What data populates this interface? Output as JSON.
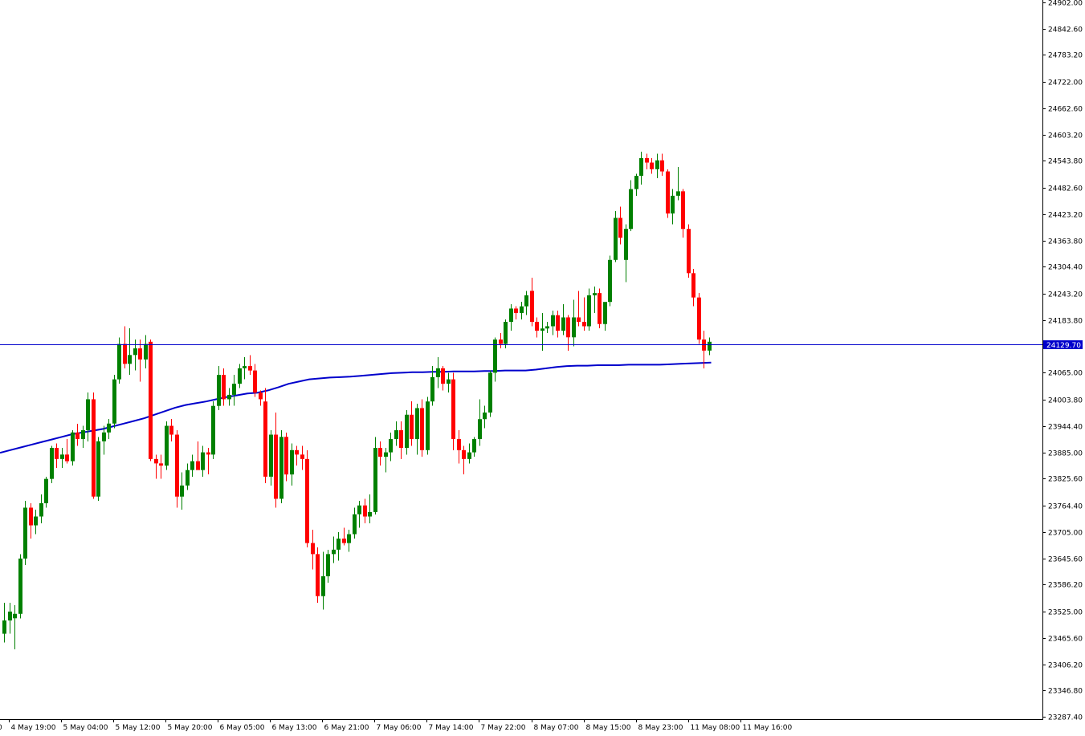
{
  "chart_data": {
    "type": "candlestick",
    "title": "",
    "timeframe": "H1",
    "colors": {
      "background": "#ffffff",
      "axis": "#000000",
      "up_candle": "#008000",
      "down_candle": "#ff0000",
      "price_line": "#0000cc",
      "moving_average": "#0000cc",
      "price_badge_bg": "#0000cc",
      "price_badge_text": "#ffffff"
    },
    "y_axis": {
      "min": 23287.4,
      "max": 24902.0,
      "ticks": [
        "24902.00",
        "24842.60",
        "24783.20",
        "24722.00",
        "24662.60",
        "24603.20",
        "24543.80",
        "24482.60",
        "24423.20",
        "24363.80",
        "24304.40",
        "24243.20",
        "24183.80",
        "24129.70",
        "24065.00",
        "24003.80",
        "23944.40",
        "23885.00",
        "23825.60",
        "23764.40",
        "23705.00",
        "23645.60",
        "23586.20",
        "23525.00",
        "23465.60",
        "23406.20",
        "23346.80",
        "23287.40"
      ]
    },
    "x_axis": {
      "ticks": [
        "4 May 19:00",
        "5 May 04:00",
        "5 May 12:00",
        "5 May 20:00",
        "6 May 05:00",
        "6 May 13:00",
        "6 May 21:00",
        "7 May 06:00",
        "7 May 14:00",
        "7 May 22:00",
        "8 May 07:00",
        "8 May 15:00",
        "8 May 23:00",
        "11 May 08:00",
        "11 May 16:00"
      ],
      "first_tick_fragment": "0"
    },
    "current_price": 24129.7,
    "current_price_label": "24129.70",
    "candles": [
      {
        "o": 23475,
        "h": 23545,
        "l": 23455,
        "c": 23505
      },
      {
        "o": 23505,
        "h": 23545,
        "l": 23475,
        "c": 23525
      },
      {
        "o": 23510,
        "h": 23540,
        "l": 23440,
        "c": 23520
      },
      {
        "o": 23520,
        "h": 23655,
        "l": 23510,
        "c": 23645
      },
      {
        "o": 23645,
        "h": 23775,
        "l": 23630,
        "c": 23760
      },
      {
        "o": 23760,
        "h": 23770,
        "l": 23690,
        "c": 23720
      },
      {
        "o": 23720,
        "h": 23755,
        "l": 23700,
        "c": 23740
      },
      {
        "o": 23740,
        "h": 23790,
        "l": 23725,
        "c": 23770
      },
      {
        "o": 23770,
        "h": 23830,
        "l": 23760,
        "c": 23825
      },
      {
        "o": 23825,
        "h": 23900,
        "l": 23815,
        "c": 23895
      },
      {
        "o": 23895,
        "h": 23905,
        "l": 23850,
        "c": 23870
      },
      {
        "o": 23870,
        "h": 23895,
        "l": 23850,
        "c": 23880
      },
      {
        "o": 23880,
        "h": 23915,
        "l": 23860,
        "c": 23865
      },
      {
        "o": 23865,
        "h": 23935,
        "l": 23855,
        "c": 23930
      },
      {
        "o": 23930,
        "h": 23950,
        "l": 23900,
        "c": 23915
      },
      {
        "o": 23915,
        "h": 23945,
        "l": 23895,
        "c": 23935
      },
      {
        "o": 23935,
        "h": 24020,
        "l": 23910,
        "c": 24005
      },
      {
        "o": 24005,
        "h": 24020,
        "l": 23780,
        "c": 23785
      },
      {
        "o": 23785,
        "h": 23920,
        "l": 23775,
        "c": 23910
      },
      {
        "o": 23910,
        "h": 23945,
        "l": 23880,
        "c": 23930
      },
      {
        "o": 23930,
        "h": 23960,
        "l": 23915,
        "c": 23950
      },
      {
        "o": 23950,
        "h": 24060,
        "l": 23940,
        "c": 24050
      },
      {
        "o": 24050,
        "h": 24145,
        "l": 24040,
        "c": 24130
      },
      {
        "o": 24130,
        "h": 24170,
        "l": 24075,
        "c": 24085
      },
      {
        "o": 24085,
        "h": 24165,
        "l": 24060,
        "c": 24105
      },
      {
        "o": 24105,
        "h": 24140,
        "l": 24070,
        "c": 24120
      },
      {
        "o": 24120,
        "h": 24140,
        "l": 24045,
        "c": 24095
      },
      {
        "o": 24095,
        "h": 24150,
        "l": 24075,
        "c": 24130
      },
      {
        "o": 24135,
        "h": 24140,
        "l": 23865,
        "c": 23870
      },
      {
        "o": 23870,
        "h": 23880,
        "l": 23825,
        "c": 23860
      },
      {
        "o": 23860,
        "h": 23880,
        "l": 23825,
        "c": 23855
      },
      {
        "o": 23855,
        "h": 23955,
        "l": 23845,
        "c": 23945
      },
      {
        "o": 23945,
        "h": 23960,
        "l": 23910,
        "c": 23925
      },
      {
        "o": 23925,
        "h": 23935,
        "l": 23760,
        "c": 23785
      },
      {
        "o": 23785,
        "h": 23840,
        "l": 23755,
        "c": 23810
      },
      {
        "o": 23810,
        "h": 23860,
        "l": 23800,
        "c": 23845
      },
      {
        "o": 23845,
        "h": 23880,
        "l": 23830,
        "c": 23865
      },
      {
        "o": 23865,
        "h": 23910,
        "l": 23845,
        "c": 23845
      },
      {
        "o": 23845,
        "h": 23900,
        "l": 23830,
        "c": 23885
      },
      {
        "o": 23885,
        "h": 23895,
        "l": 23835,
        "c": 23880
      },
      {
        "o": 23880,
        "h": 24000,
        "l": 23870,
        "c": 23990
      },
      {
        "o": 23990,
        "h": 24080,
        "l": 23980,
        "c": 24060
      },
      {
        "o": 24060,
        "h": 24075,
        "l": 23990,
        "c": 24005
      },
      {
        "o": 24005,
        "h": 24030,
        "l": 23990,
        "c": 24015
      },
      {
        "o": 24015,
        "h": 24060,
        "l": 23990,
        "c": 24040
      },
      {
        "o": 24040,
        "h": 24085,
        "l": 24030,
        "c": 24075
      },
      {
        "o": 24075,
        "h": 24100,
        "l": 24050,
        "c": 24080
      },
      {
        "o": 24080,
        "h": 24105,
        "l": 24060,
        "c": 24070
      },
      {
        "o": 24070,
        "h": 24085,
        "l": 24010,
        "c": 24020
      },
      {
        "o": 24020,
        "h": 24025,
        "l": 23990,
        "c": 24005
      },
      {
        "o": 24000,
        "h": 24030,
        "l": 23815,
        "c": 23830
      },
      {
        "o": 23830,
        "h": 23935,
        "l": 23810,
        "c": 23925
      },
      {
        "o": 23925,
        "h": 23975,
        "l": 23760,
        "c": 23780
      },
      {
        "o": 23780,
        "h": 23935,
        "l": 23770,
        "c": 23920
      },
      {
        "o": 23920,
        "h": 23930,
        "l": 23820,
        "c": 23835
      },
      {
        "o": 23835,
        "h": 23905,
        "l": 23810,
        "c": 23890
      },
      {
        "o": 23890,
        "h": 23900,
        "l": 23855,
        "c": 23880
      },
      {
        "o": 23880,
        "h": 23900,
        "l": 23845,
        "c": 23870
      },
      {
        "o": 23870,
        "h": 23890,
        "l": 23670,
        "c": 23680
      },
      {
        "o": 23680,
        "h": 23710,
        "l": 23620,
        "c": 23655
      },
      {
        "o": 23655,
        "h": 23670,
        "l": 23545,
        "c": 23560
      },
      {
        "o": 23560,
        "h": 23660,
        "l": 23530,
        "c": 23605
      },
      {
        "o": 23605,
        "h": 23665,
        "l": 23590,
        "c": 23655
      },
      {
        "o": 23655,
        "h": 23695,
        "l": 23635,
        "c": 23665
      },
      {
        "o": 23665,
        "h": 23705,
        "l": 23640,
        "c": 23690
      },
      {
        "o": 23690,
        "h": 23715,
        "l": 23675,
        "c": 23680
      },
      {
        "o": 23680,
        "h": 23710,
        "l": 23660,
        "c": 23700
      },
      {
        "o": 23700,
        "h": 23760,
        "l": 23690,
        "c": 23745
      },
      {
        "o": 23745,
        "h": 23775,
        "l": 23715,
        "c": 23765
      },
      {
        "o": 23765,
        "h": 23780,
        "l": 23725,
        "c": 23740
      },
      {
        "o": 23740,
        "h": 23790,
        "l": 23725,
        "c": 23750
      },
      {
        "o": 23750,
        "h": 23920,
        "l": 23745,
        "c": 23895
      },
      {
        "o": 23895,
        "h": 23910,
        "l": 23855,
        "c": 23875
      },
      {
        "o": 23875,
        "h": 23895,
        "l": 23840,
        "c": 23885
      },
      {
        "o": 23885,
        "h": 23930,
        "l": 23865,
        "c": 23915
      },
      {
        "o": 23915,
        "h": 23955,
        "l": 23900,
        "c": 23935
      },
      {
        "o": 23935,
        "h": 23955,
        "l": 23870,
        "c": 23895
      },
      {
        "o": 23895,
        "h": 23980,
        "l": 23880,
        "c": 23970
      },
      {
        "o": 23970,
        "h": 24000,
        "l": 23900,
        "c": 23915
      },
      {
        "o": 23915,
        "h": 23995,
        "l": 23880,
        "c": 23985
      },
      {
        "o": 23985,
        "h": 24005,
        "l": 23875,
        "c": 23890
      },
      {
        "o": 23890,
        "h": 24010,
        "l": 23880,
        "c": 24000
      },
      {
        "o": 24000,
        "h": 24080,
        "l": 23990,
        "c": 24055
      },
      {
        "o": 24055,
        "h": 24100,
        "l": 24030,
        "c": 24075
      },
      {
        "o": 24075,
        "h": 24080,
        "l": 24025,
        "c": 24040
      },
      {
        "o": 24040,
        "h": 24065,
        "l": 24020,
        "c": 24050
      },
      {
        "o": 24050,
        "h": 24065,
        "l": 23890,
        "c": 23915
      },
      {
        "o": 23915,
        "h": 23935,
        "l": 23860,
        "c": 23890
      },
      {
        "o": 23890,
        "h": 23900,
        "l": 23835,
        "c": 23870
      },
      {
        "o": 23870,
        "h": 23905,
        "l": 23860,
        "c": 23885
      },
      {
        "o": 23885,
        "h": 23920,
        "l": 23875,
        "c": 23915
      },
      {
        "o": 23915,
        "h": 24005,
        "l": 23900,
        "c": 23960
      },
      {
        "o": 23960,
        "h": 23990,
        "l": 23940,
        "c": 23975
      },
      {
        "o": 23975,
        "h": 24070,
        "l": 23965,
        "c": 24065
      },
      {
        "o": 24065,
        "h": 24145,
        "l": 24045,
        "c": 24140
      },
      {
        "o": 24140,
        "h": 24155,
        "l": 24120,
        "c": 24130
      },
      {
        "o": 24130,
        "h": 24185,
        "l": 24120,
        "c": 24180
      },
      {
        "o": 24180,
        "h": 24220,
        "l": 24160,
        "c": 24210
      },
      {
        "o": 24210,
        "h": 24215,
        "l": 24185,
        "c": 24200
      },
      {
        "o": 24200,
        "h": 24225,
        "l": 24185,
        "c": 24215
      },
      {
        "o": 24215,
        "h": 24250,
        "l": 24195,
        "c": 24240
      },
      {
        "o": 24250,
        "h": 24280,
        "l": 24170,
        "c": 24180
      },
      {
        "o": 24180,
        "h": 24190,
        "l": 24145,
        "c": 24160
      },
      {
        "o": 24160,
        "h": 24200,
        "l": 24115,
        "c": 24165
      },
      {
        "o": 24165,
        "h": 24180,
        "l": 24155,
        "c": 24170
      },
      {
        "o": 24170,
        "h": 24205,
        "l": 24150,
        "c": 24195
      },
      {
        "o": 24195,
        "h": 24205,
        "l": 24145,
        "c": 24160
      },
      {
        "o": 24160,
        "h": 24220,
        "l": 24150,
        "c": 24190
      },
      {
        "o": 24190,
        "h": 24195,
        "l": 24115,
        "c": 24145
      },
      {
        "o": 24145,
        "h": 24230,
        "l": 24125,
        "c": 24190
      },
      {
        "o": 24190,
        "h": 24250,
        "l": 24170,
        "c": 24180
      },
      {
        "o": 24180,
        "h": 24235,
        "l": 24160,
        "c": 24170
      },
      {
        "o": 24170,
        "h": 24255,
        "l": 24160,
        "c": 24240
      },
      {
        "o": 24240,
        "h": 24260,
        "l": 24200,
        "c": 24245
      },
      {
        "o": 24245,
        "h": 24255,
        "l": 24165,
        "c": 24175
      },
      {
        "o": 24175,
        "h": 24215,
        "l": 24160,
        "c": 24225
      },
      {
        "o": 24225,
        "h": 24330,
        "l": 24215,
        "c": 24320
      },
      {
        "o": 24320,
        "h": 24430,
        "l": 24315,
        "c": 24415
      },
      {
        "o": 24415,
        "h": 24440,
        "l": 24355,
        "c": 24370
      },
      {
        "o": 24320,
        "h": 24400,
        "l": 24270,
        "c": 24390
      },
      {
        "o": 24390,
        "h": 24500,
        "l": 24385,
        "c": 24480
      },
      {
        "o": 24480,
        "h": 24515,
        "l": 24465,
        "c": 24510
      },
      {
        "o": 24510,
        "h": 24565,
        "l": 24490,
        "c": 24550
      },
      {
        "o": 24550,
        "h": 24560,
        "l": 24525,
        "c": 24540
      },
      {
        "o": 24540,
        "h": 24550,
        "l": 24515,
        "c": 24525
      },
      {
        "o": 24525,
        "h": 24560,
        "l": 24505,
        "c": 24545
      },
      {
        "o": 24545,
        "h": 24560,
        "l": 24510,
        "c": 24520
      },
      {
        "o": 24520,
        "h": 24525,
        "l": 24415,
        "c": 24425
      },
      {
        "o": 24425,
        "h": 24480,
        "l": 24400,
        "c": 24465
      },
      {
        "o": 24465,
        "h": 24530,
        "l": 24455,
        "c": 24475
      },
      {
        "o": 24475,
        "h": 24480,
        "l": 24370,
        "c": 24390
      },
      {
        "o": 24390,
        "h": 24400,
        "l": 24280,
        "c": 24290
      },
      {
        "o": 24290,
        "h": 24300,
        "l": 24215,
        "c": 24235
      },
      {
        "o": 24235,
        "h": 24245,
        "l": 24130,
        "c": 24140
      },
      {
        "o": 24140,
        "h": 24160,
        "l": 24075,
        "c": 24115
      },
      {
        "o": 24115,
        "h": 24145,
        "l": 24105,
        "c": 24135
      }
    ],
    "moving_average": [
      23884,
      23890,
      23896,
      23902,
      23908,
      23914,
      23920,
      23926,
      23930,
      23934,
      23938,
      23944,
      23950,
      23956,
      23962,
      23970,
      23978,
      23986,
      23992,
      23996,
      24000,
      24005,
      24010,
      24014,
      24018,
      24020,
      24025,
      24032,
      24040,
      24045,
      24050,
      24052,
      24054,
      24055,
      24056,
      24058,
      24060,
      24062,
      24064,
      24065,
      24066,
      24066,
      24067,
      24067,
      24068,
      24068,
      24068,
      24069,
      24069,
      24070,
      24070,
      24070,
      24072,
      24075,
      24078,
      24080,
      24081,
      24081,
      24082,
      24082,
      24082,
      24083,
      24083,
      24083,
      24083,
      24084,
      24085,
      24086,
      24087,
      24088
    ]
  },
  "current_price_badge": {
    "label": "24129.70"
  }
}
